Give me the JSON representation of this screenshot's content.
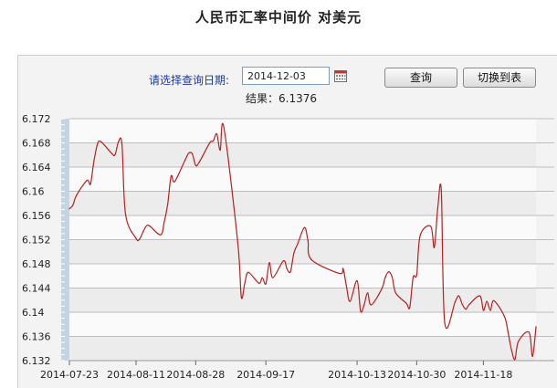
{
  "page": {
    "title": "人民币汇率中间价  对美元",
    "date_label": "请选择查询日期:",
    "date_value": "2014-12-03",
    "result_text": "结果：6.1376",
    "query_button": "查询",
    "toggle_button": "切换到表"
  },
  "colors": {
    "line": "#b22222",
    "axis_bar": "#c3d4e4",
    "band_light": "#fafafa",
    "band_dark": "#ececec",
    "grid": "#bdbdbd"
  },
  "chart_data": {
    "type": "line",
    "title": "",
    "xlabel": "",
    "ylabel": "",
    "ylim": [
      6.132,
      6.172
    ],
    "yticks": [
      "6.172",
      "6.168",
      "6.164",
      "6.16",
      "6.156",
      "6.152",
      "6.148",
      "6.144",
      "6.14",
      "6.136",
      "6.132"
    ],
    "xlim": [
      "2014-07-23",
      "2014-12-03"
    ],
    "xticks": [
      "2014-07-23",
      "2014-08-11",
      "2014-08-28",
      "2014-09-17",
      "2014-10-13",
      "2014-10-30",
      "2014-11-18"
    ],
    "grid": true,
    "series": [
      {
        "name": "",
        "x": [
          "2014-07-23",
          "2014-07-24",
          "2014-07-25",
          "2014-07-28",
          "2014-07-29",
          "2014-07-30",
          "2014-07-31",
          "2014-08-01",
          "2014-08-04",
          "2014-08-05",
          "2014-08-06",
          "2014-08-07",
          "2014-08-08",
          "2014-08-11",
          "2014-08-12",
          "2014-08-13",
          "2014-08-14",
          "2014-08-15",
          "2014-08-18",
          "2014-08-19",
          "2014-08-20",
          "2014-08-21",
          "2014-08-22",
          "2014-08-25",
          "2014-08-26",
          "2014-08-27",
          "2014-08-28",
          "2014-08-29",
          "2014-09-01",
          "2014-09-02",
          "2014-09-03",
          "2014-09-04",
          "2014-09-05",
          "2014-09-09",
          "2014-09-10",
          "2014-09-11",
          "2014-09-12",
          "2014-09-15",
          "2014-09-16",
          "2014-09-17",
          "2014-09-18",
          "2014-09-19",
          "2014-09-22",
          "2014-09-23",
          "2014-09-24",
          "2014-09-25",
          "2014-09-26",
          "2014-09-28",
          "2014-09-29",
          "2014-09-30",
          "2014-10-08",
          "2014-10-09",
          "2014-10-10",
          "2014-10-11",
          "2014-10-13",
          "2014-10-14",
          "2014-10-15",
          "2014-10-16",
          "2014-10-17",
          "2014-10-20",
          "2014-10-21",
          "2014-10-22",
          "2014-10-23",
          "2014-10-24",
          "2014-10-27",
          "2014-10-28",
          "2014-10-29",
          "2014-10-30",
          "2014-10-31",
          "2014-11-03",
          "2014-11-04",
          "2014-11-05",
          "2014-11-06",
          "2014-11-07",
          "2014-11-10",
          "2014-11-11",
          "2014-11-12",
          "2014-11-13",
          "2014-11-14",
          "2014-11-17",
          "2014-11-18",
          "2014-11-19",
          "2014-11-20",
          "2014-11-21",
          "2014-11-24",
          "2014-11-25",
          "2014-11-26",
          "2014-11-27",
          "2014-11-28",
          "2014-12-01",
          "2014-12-02",
          "2014-12-03"
        ],
        "y": [
          6.1571,
          6.1577,
          6.1593,
          6.1618,
          6.1612,
          6.165,
          6.1678,
          6.1682,
          6.1663,
          6.166,
          6.1682,
          6.1677,
          6.1562,
          6.1522,
          6.1521,
          6.1533,
          6.1543,
          6.1542,
          6.1528,
          6.1548,
          6.1578,
          6.1625,
          6.1616,
          6.1652,
          6.1663,
          6.1662,
          6.1643,
          6.1648,
          6.168,
          6.1683,
          6.1695,
          6.1668,
          6.1706,
          6.1515,
          6.1425,
          6.1448,
          6.1466,
          6.1448,
          6.1457,
          6.1447,
          6.1482,
          6.1457,
          6.1485,
          6.1472,
          6.1467,
          6.1498,
          6.1512,
          6.154,
          6.1518,
          6.1487,
          6.1464,
          6.1472,
          6.1442,
          6.1418,
          6.1452,
          6.1402,
          6.1412,
          6.1432,
          6.1412,
          6.1438,
          6.1457,
          6.1467,
          6.1458,
          6.1432,
          6.1415,
          6.1408,
          6.1458,
          6.1462,
          6.1527,
          6.1542,
          6.1507,
          6.1572,
          6.1601,
          6.1382,
          6.1418,
          6.1427,
          6.1413,
          6.1405,
          6.1413,
          6.1427,
          6.1403,
          6.1418,
          6.1403,
          6.1419,
          6.1393,
          6.1368,
          6.1338,
          6.1322,
          6.1352,
          6.1367,
          6.1327,
          6.1376
        ]
      }
    ]
  }
}
